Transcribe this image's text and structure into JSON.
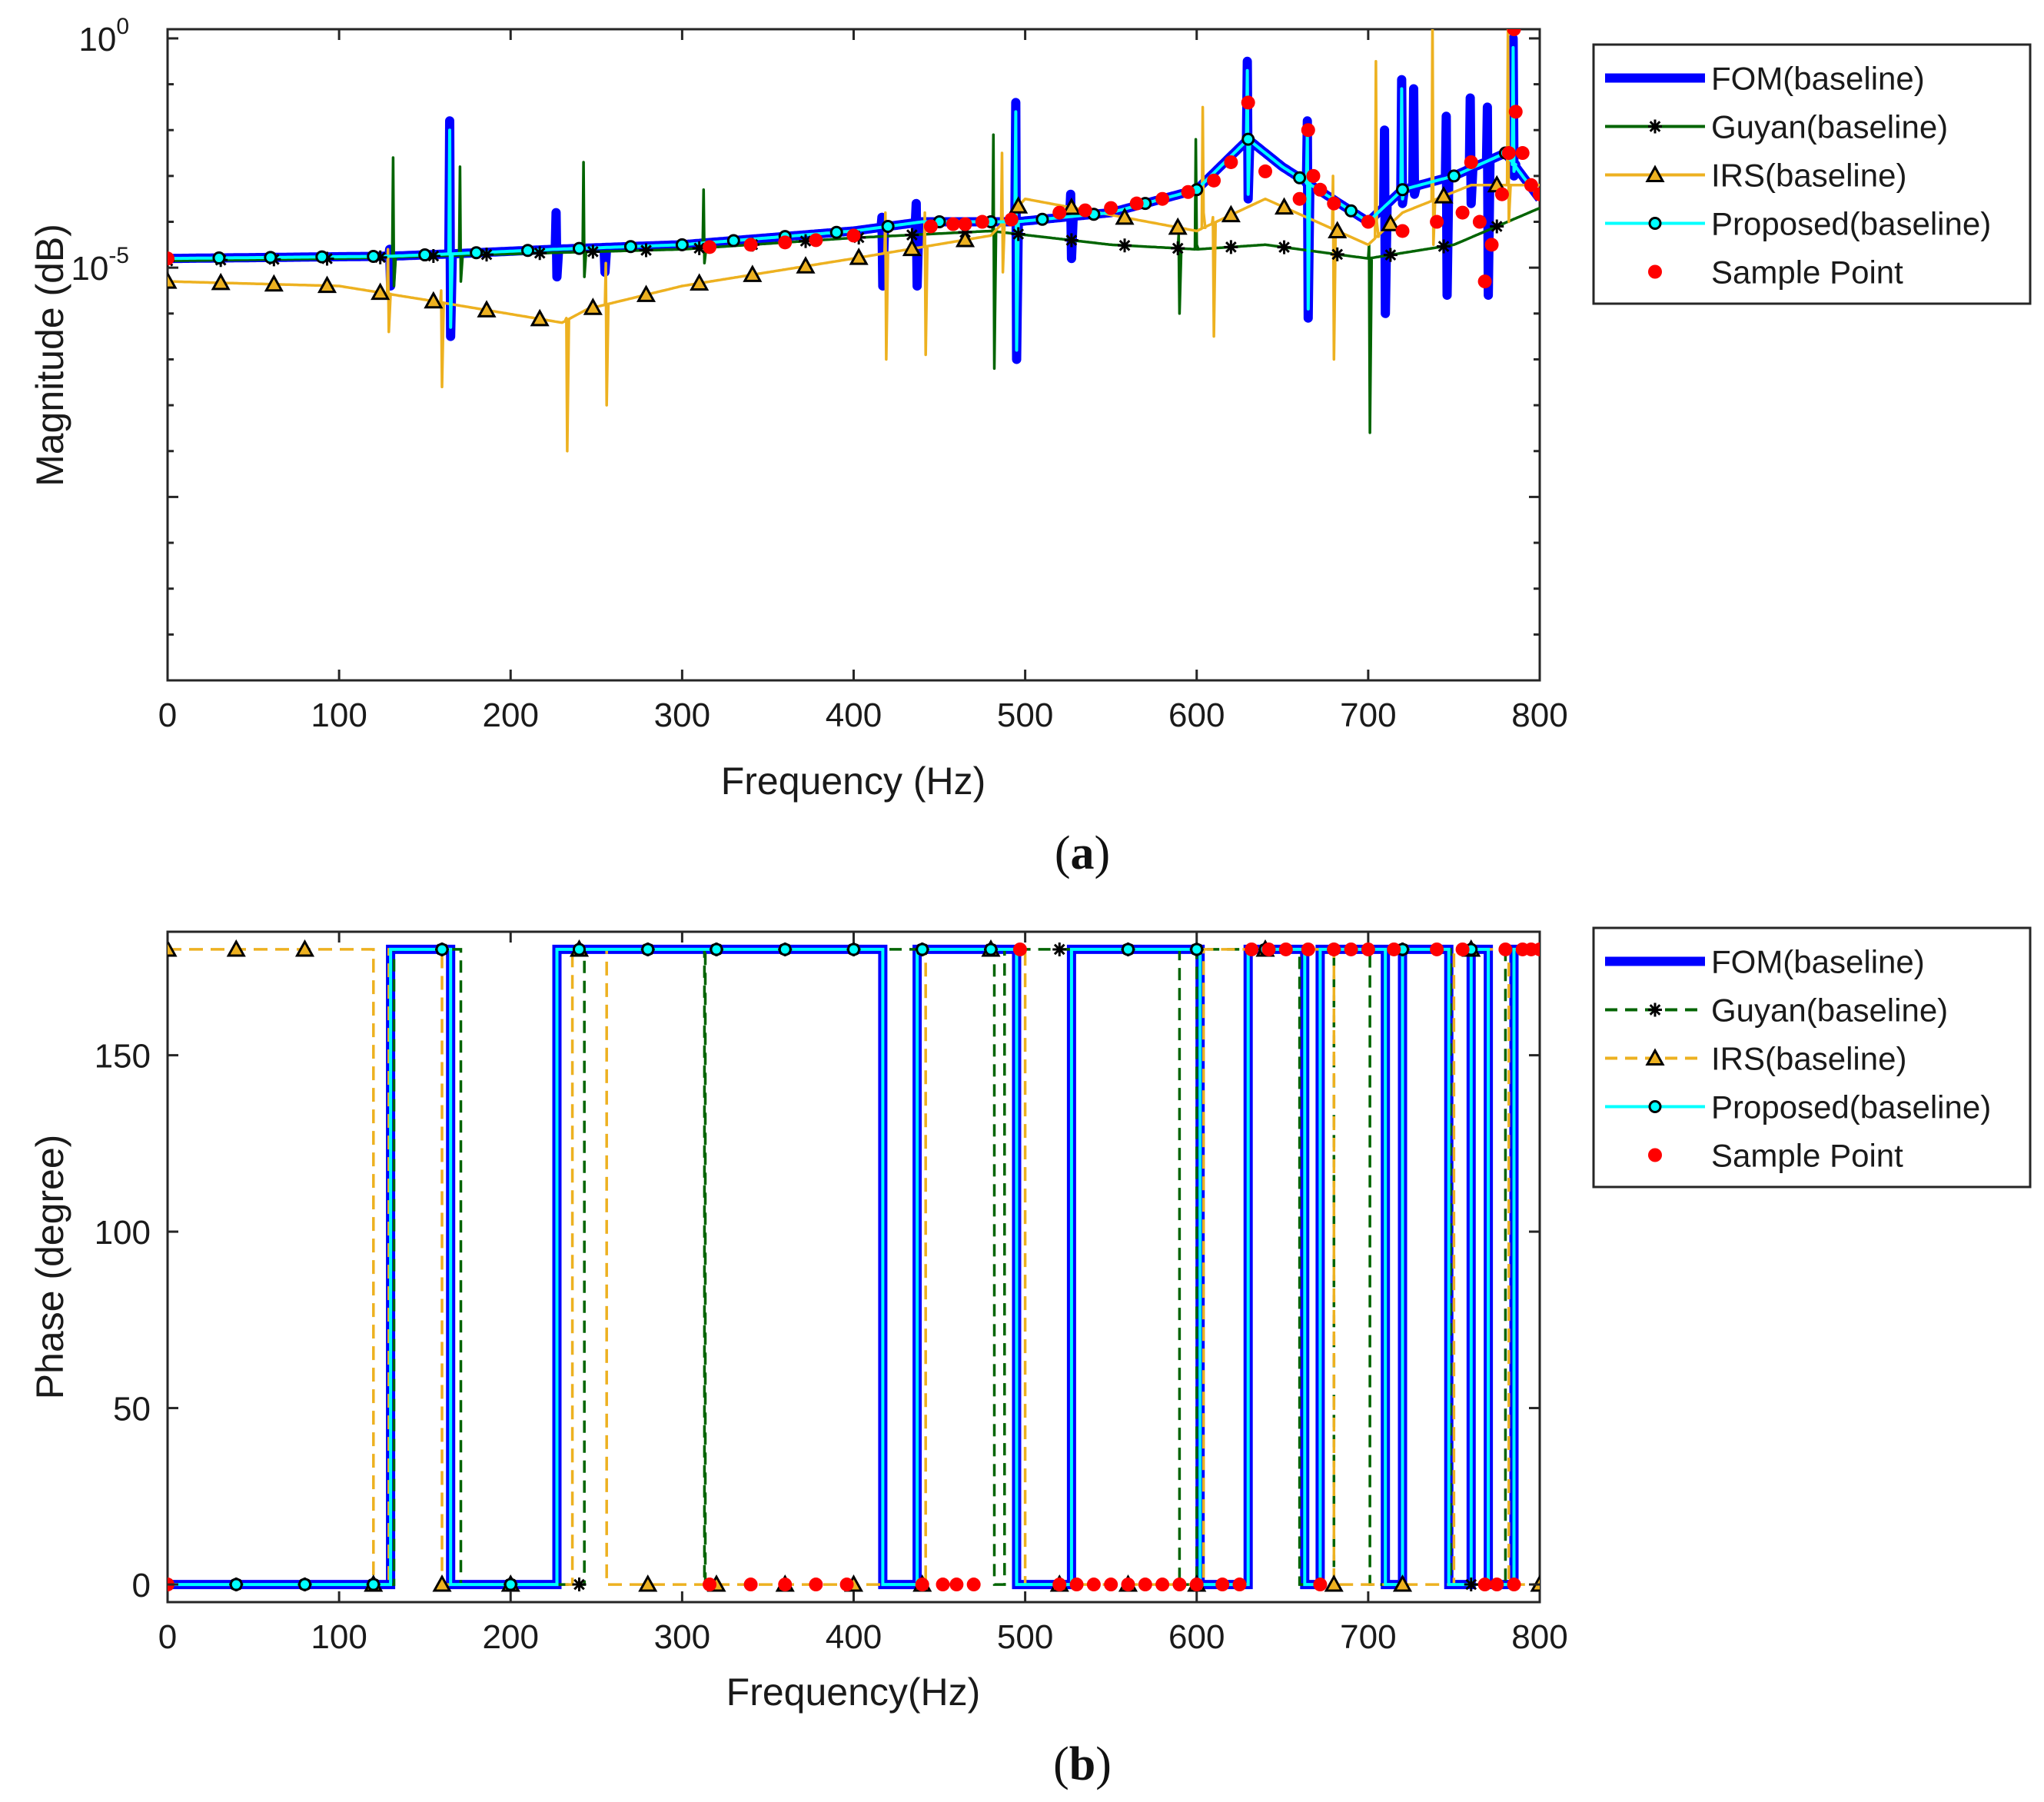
{
  "chart_data": [
    {
      "id": "a",
      "type": "line",
      "caption_letter": "a",
      "xlabel": "Frequency (Hz)",
      "ylabel": "Magnitude (dB)",
      "yscale": "log",
      "xlim": [
        0,
        800
      ],
      "ylim_exponent": [
        -14,
        0.2
      ],
      "x_ticks": [
        0,
        100,
        200,
        300,
        400,
        500,
        600,
        700,
        800
      ],
      "y_ticks": [
        {
          "base": "10",
          "exp": "0",
          "value_exp": 0
        },
        {
          "base": "10",
          "exp": "-5",
          "value_exp": -5
        }
      ],
      "legend": {
        "placement": "outside-right-top",
        "entries": [
          {
            "label": "FOM(baseline)",
            "color": "#0000ff",
            "style": "solid-thick",
            "marker": "none"
          },
          {
            "label": "Guyan(baseline)",
            "color": "#006400",
            "style": "solid",
            "marker": "asterisk"
          },
          {
            "label": "IRS(baseline)",
            "color": "#edb120",
            "style": "solid",
            "marker": "triangle"
          },
          {
            "label": "Proposed(baseline)",
            "color": "#00ffff",
            "style": "solid",
            "marker": "circle"
          },
          {
            "label": "Sample Point",
            "color": "#ff0000",
            "style": "none",
            "marker": "dot"
          }
        ]
      },
      "series": [
        {
          "name": "FOM(baseline)",
          "color": "#0000ff",
          "base_log_y": [
            [
              0,
              -4.8
            ],
            [
              130,
              -4.75
            ],
            [
              165,
              -4.7
            ],
            [
              225,
              -4.6
            ],
            [
              300,
              -4.5
            ],
            [
              400,
              -4.2
            ],
            [
              440,
              -4.0
            ],
            [
              495,
              -4.0
            ],
            [
              550,
              -3.8
            ],
            [
              600,
              -3.3
            ],
            [
              630,
              -2.2
            ],
            [
              650,
              -2.8
            ],
            [
              700,
              -4.0
            ],
            [
              720,
              -3.3
            ],
            [
              750,
              -3.0
            ],
            [
              780,
              -2.5
            ],
            [
              800,
              -3.5
            ]
          ],
          "resonances": [
            {
              "x": 130,
              "peak": -4.6,
              "trough": -5.4
            },
            {
              "x": 165,
              "peak": -1.8,
              "trough": -6.5
            },
            {
              "x": 227,
              "peak": -3.8,
              "trough": -5.2
            },
            {
              "x": 255,
              "peak": -4.6,
              "trough": -5.1
            },
            {
              "x": 417,
              "peak": -3.9,
              "trough": -5.4
            },
            {
              "x": 437,
              "peak": -3.6,
              "trough": -5.4
            },
            {
              "x": 495,
              "peak": -1.4,
              "trough": -7.0
            },
            {
              "x": 527,
              "peak": -3.4,
              "trough": -4.8
            },
            {
              "x": 630,
              "peak": -0.5,
              "trough": -3.5
            },
            {
              "x": 665,
              "peak": -1.8,
              "trough": -6.1
            },
            {
              "x": 710,
              "peak": -2.0,
              "trough": -6.0
            },
            {
              "x": 720,
              "peak": -0.9,
              "trough": -3.6
            },
            {
              "x": 727,
              "peak": -1.1,
              "trough": -3.4
            },
            {
              "x": 746,
              "peak": -1.7,
              "trough": -5.6
            },
            {
              "x": 760,
              "peak": -1.3,
              "trough": -3.6
            },
            {
              "x": 770,
              "peak": -1.5,
              "trough": -5.6
            },
            {
              "x": 785,
              "peak": 0.0,
              "trough": -3.0
            }
          ]
        },
        {
          "name": "Guyan(baseline)",
          "color": "#006400",
          "base_log_y": [
            [
              0,
              -4.85
            ],
            [
              100,
              -4.8
            ],
            [
              200,
              -4.7
            ],
            [
              300,
              -4.6
            ],
            [
              400,
              -4.35
            ],
            [
              480,
              -4.2
            ],
            [
              550,
              -4.5
            ],
            [
              600,
              -4.6
            ],
            [
              640,
              -4.5
            ],
            [
              700,
              -4.8
            ],
            [
              750,
              -4.5
            ],
            [
              800,
              -3.7
            ]
          ],
          "resonances": [
            {
              "x": 132,
              "peak": -2.6,
              "trough": -5.4
            },
            {
              "x": 171,
              "peak": -2.8,
              "trough": -5.3
            },
            {
              "x": 243,
              "peak": -2.7,
              "trough": -5.2
            },
            {
              "x": 313,
              "peak": -3.3,
              "trough": -4.9
            },
            {
              "x": 482,
              "peak": -2.1,
              "trough": -7.2
            },
            {
              "x": 590,
              "peak": -4.3,
              "trough": -6.0
            },
            {
              "x": 600,
              "peak": -2.2,
              "trough": -4.5
            },
            {
              "x": 701,
              "peak": -4.5,
              "trough": -8.6
            }
          ]
        },
        {
          "name": "IRS(baseline)",
          "color": "#edb120",
          "base_log_y": [
            [
              0,
              -5.3
            ],
            [
              100,
              -5.4
            ],
            [
              150,
              -5.7
            ],
            [
              230,
              -6.2
            ],
            [
              245,
              -5.9
            ],
            [
              300,
              -5.4
            ],
            [
              400,
              -4.8
            ],
            [
              480,
              -4.3
            ],
            [
              500,
              -3.5
            ],
            [
              600,
              -4.2
            ],
            [
              640,
              -3.5
            ],
            [
              700,
              -4.5
            ],
            [
              720,
              -3.8
            ],
            [
              760,
              -3.2
            ],
            [
              800,
              -3.2
            ]
          ],
          "resonances": [
            {
              "x": 129,
              "peak": -4.6,
              "trough": -6.4
            },
            {
              "x": 160,
              "peak": -5.5,
              "trough": -7.6
            },
            {
              "x": 233,
              "peak": -6.1,
              "trough": -9.0
            },
            {
              "x": 256,
              "peak": -4.9,
              "trough": -8.0
            },
            {
              "x": 419,
              "peak": -3.8,
              "trough": -7.0
            },
            {
              "x": 442,
              "peak": -3.8,
              "trough": -6.9
            },
            {
              "x": 487,
              "peak": -2.5,
              "trough": -5.1
            },
            {
              "x": 604,
              "peak": -1.5,
              "trough": -3.8
            },
            {
              "x": 610,
              "peak": -3.9,
              "trough": -6.5
            },
            {
              "x": 680,
              "peak": -3.0,
              "trough": -7.0
            },
            {
              "x": 705,
              "peak": -0.5,
              "trough": -4.0
            },
            {
              "x": 738,
              "peak": 0.5,
              "trough": -4.5
            },
            {
              "x": 782,
              "peak": 0.3,
              "trough": -4.0
            }
          ]
        },
        {
          "name": "Proposed(baseline)",
          "color": "#00ffff",
          "base_log_y": [
            [
              0,
              -4.8
            ],
            [
              130,
              -4.75
            ],
            [
              165,
              -4.7
            ],
            [
              225,
              -4.6
            ],
            [
              300,
              -4.5
            ],
            [
              400,
              -4.2
            ],
            [
              440,
              -4.0
            ],
            [
              495,
              -4.0
            ],
            [
              550,
              -3.8
            ],
            [
              600,
              -3.3
            ],
            [
              630,
              -2.2
            ],
            [
              650,
              -2.8
            ],
            [
              700,
              -4.0
            ],
            [
              720,
              -3.3
            ],
            [
              750,
              -3.0
            ],
            [
              780,
              -2.5
            ],
            [
              800,
              -3.5
            ]
          ],
          "resonances": [
            {
              "x": 165,
              "peak": -2.0,
              "trough": -6.3
            },
            {
              "x": 495,
              "peak": -1.6,
              "trough": -6.8
            },
            {
              "x": 630,
              "peak": -0.7,
              "trough": -3.4
            },
            {
              "x": 665,
              "peak": -2.0,
              "trough": -5.9
            },
            {
              "x": 720,
              "peak": -1.1,
              "trough": -3.5
            },
            {
              "x": 785,
              "peak": -0.2,
              "trough": -2.9
            }
          ]
        }
      ],
      "sample_points": {
        "name": "Sample Point",
        "color": "#ff0000",
        "points": [
          [
            0,
            -4.8
          ],
          [
            316,
            -4.55
          ],
          [
            340,
            -4.5
          ],
          [
            360,
            -4.45
          ],
          [
            378,
            -4.4
          ],
          [
            400,
            -4.3
          ],
          [
            445,
            -4.1
          ],
          [
            458,
            -4.05
          ],
          [
            465,
            -4.05
          ],
          [
            475,
            -4.0
          ],
          [
            492,
            -3.95
          ],
          [
            520,
            -3.8
          ],
          [
            535,
            -3.75
          ],
          [
            550,
            -3.7
          ],
          [
            565,
            -3.6
          ],
          [
            580,
            -3.5
          ],
          [
            595,
            -3.35
          ],
          [
            610,
            -3.1
          ],
          [
            620,
            -2.7
          ],
          [
            630,
            -1.4
          ],
          [
            640,
            -2.9
          ],
          [
            660,
            -3.5
          ],
          [
            665,
            -2.0
          ],
          [
            668,
            -3.0
          ],
          [
            672,
            -3.3
          ],
          [
            680,
            -3.6
          ],
          [
            700,
            -4.0
          ],
          [
            720,
            -4.2
          ],
          [
            740,
            -4.0
          ],
          [
            755,
            -3.8
          ],
          [
            760,
            -2.7
          ],
          [
            765,
            -4.0
          ],
          [
            768,
            -5.3
          ],
          [
            772,
            -4.5
          ],
          [
            778,
            -3.4
          ],
          [
            782,
            -2.5
          ],
          [
            785,
            0.2
          ],
          [
            786,
            -1.6
          ],
          [
            790,
            -2.5
          ],
          [
            795,
            -3.2
          ],
          [
            800,
            -3.4
          ]
        ]
      }
    },
    {
      "id": "b",
      "type": "line",
      "caption_letter": "b",
      "xlabel": "Frequency(Hz)",
      "ylabel": "Phase (degree)",
      "xlim": [
        0,
        800
      ],
      "ylim": [
        -5,
        185
      ],
      "x_ticks": [
        0,
        100,
        200,
        300,
        400,
        500,
        600,
        700,
        800
      ],
      "y_ticks": [
        0,
        50,
        100,
        150
      ],
      "legend": {
        "placement": "outside-right-top",
        "entries": [
          {
            "label": "FOM(baseline)",
            "color": "#0000ff",
            "style": "solid-thick",
            "marker": "none"
          },
          {
            "label": "Guyan(baseline)",
            "color": "#006400",
            "style": "dashed",
            "marker": "asterisk"
          },
          {
            "label": "IRS(baseline)",
            "color": "#edb120",
            "style": "dashed",
            "marker": "triangle"
          },
          {
            "label": "Proposed(baseline)",
            "color": "#00ffff",
            "style": "solid",
            "marker": "circle"
          },
          {
            "label": "Sample Point",
            "color": "#ff0000",
            "style": "none",
            "marker": "dot"
          }
        ]
      },
      "series": [
        {
          "name": "FOM(baseline)",
          "color": "#0000ff",
          "transitions": [
            130,
            165,
            227,
            417,
            437,
            495,
            527,
            602,
            630,
            663,
            672,
            710,
            720,
            747,
            760,
            770,
            785
          ],
          "start": 0
        },
        {
          "name": "Guyan(baseline)",
          "color": "#006400",
          "transitions": [
            132,
            171,
            243,
            313,
            313.5,
            482,
            488,
            590,
            600,
            660,
            680,
            701,
            720,
            748,
            780
          ],
          "start": 0
        },
        {
          "name": "IRS(baseline)",
          "color": "#edb120",
          "transitions": [
            120,
            129,
            160,
            236,
            256,
            442,
            500,
            604,
            680,
            750,
            782
          ],
          "start": 180
        },
        {
          "name": "Proposed(baseline)",
          "color": "#00ffff",
          "transitions": [
            130,
            165,
            227,
            417,
            437,
            495,
            527,
            602,
            630,
            663,
            672,
            710,
            720,
            747,
            760,
            770,
            785
          ],
          "start": 0
        }
      ],
      "sample_points": {
        "name": "Sample Point",
        "color": "#ff0000",
        "points": [
          [
            0,
            0
          ],
          [
            316,
            0
          ],
          [
            340,
            0
          ],
          [
            360,
            0
          ],
          [
            378,
            0
          ],
          [
            396,
            0
          ],
          [
            440,
            0
          ],
          [
            452,
            0
          ],
          [
            460,
            0
          ],
          [
            470,
            0
          ],
          [
            497,
            180
          ],
          [
            520,
            0
          ],
          [
            530,
            0
          ],
          [
            540,
            0
          ],
          [
            550,
            0
          ],
          [
            560,
            0
          ],
          [
            570,
            0
          ],
          [
            580,
            0
          ],
          [
            590,
            0
          ],
          [
            600,
            0
          ],
          [
            615,
            0
          ],
          [
            625,
            0
          ],
          [
            632,
            180
          ],
          [
            642,
            180
          ],
          [
            652,
            180
          ],
          [
            665,
            180
          ],
          [
            672,
            0
          ],
          [
            680,
            180
          ],
          [
            690,
            180
          ],
          [
            700,
            180
          ],
          [
            715,
            180
          ],
          [
            740,
            180
          ],
          [
            755,
            180
          ],
          [
            768,
            0
          ],
          [
            775,
            0
          ],
          [
            780,
            180
          ],
          [
            785,
            0
          ],
          [
            790,
            180
          ],
          [
            795,
            180
          ],
          [
            800,
            180
          ]
        ]
      }
    }
  ]
}
